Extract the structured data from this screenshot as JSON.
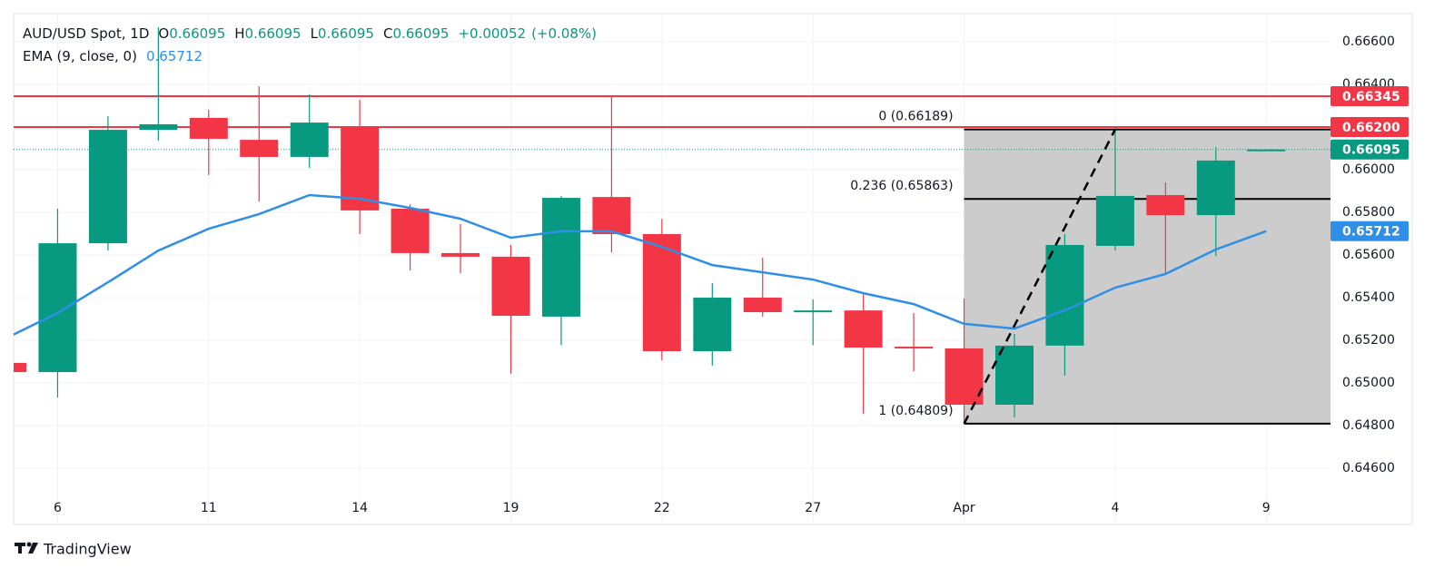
{
  "chart_data": {
    "type": "candlestick",
    "legend": {
      "symbol": "AUD/USD Spot, 1D",
      "fields": [
        {
          "label": "O",
          "value": "0.66095"
        },
        {
          "label": "H",
          "value": "0.66095"
        },
        {
          "label": "L",
          "value": "0.66095"
        },
        {
          "label": "C",
          "value": "0.66095"
        }
      ],
      "change": "+0.00052",
      "change_pct": "(+0.08%)"
    },
    "categories": [
      null,
      "6",
      null,
      null,
      "11",
      null,
      null,
      "14",
      null,
      null,
      "19",
      null,
      null,
      "22",
      null,
      null,
      "27",
      null,
      null,
      "Apr",
      null,
      null,
      "4",
      null,
      null,
      "9"
    ],
    "open": [
      0.65094,
      0.65051,
      0.65655,
      0.66187,
      0.66243,
      0.6614,
      0.6606,
      0.662,
      0.65817,
      0.65609,
      0.65592,
      0.65311,
      0.65872,
      0.65698,
      0.65149,
      0.654,
      0.65332,
      0.6534,
      0.6517,
      0.65162,
      0.64898,
      0.65175,
      0.65643,
      0.65881,
      0.65787,
      0.66095
    ],
    "high": [
      0.65094,
      0.65817,
      0.66251,
      0.66668,
      0.66281,
      0.66391,
      0.66353,
      0.66328,
      0.65838,
      0.65745,
      0.65647,
      0.65877,
      0.66345,
      0.6577,
      0.65468,
      0.65587,
      0.65392,
      0.65421,
      0.65328,
      0.65396,
      0.6523,
      0.65698,
      0.662,
      0.6594,
      0.66106,
      0.66095
    ],
    "low": [
      0.65051,
      0.64932,
      0.65621,
      0.66136,
      0.65975,
      0.65851,
      0.66009,
      0.65698,
      0.65528,
      0.65515,
      0.65043,
      0.65177,
      0.65613,
      0.65106,
      0.65081,
      0.65311,
      0.65177,
      0.64855,
      0.65055,
      0.64813,
      0.64838,
      0.65034,
      0.65621,
      0.65506,
      0.65596,
      0.66095
    ],
    "close": [
      0.65051,
      0.65655,
      0.66187,
      0.66213,
      0.66145,
      0.6606,
      0.66221,
      0.65809,
      0.65609,
      0.65592,
      0.65315,
      0.65868,
      0.65698,
      0.65149,
      0.654,
      0.65332,
      0.6534,
      0.65166,
      0.65166,
      0.64898,
      0.65175,
      0.65647,
      0.65877,
      0.65787,
      0.66043,
      0.66095
    ],
    "up_color": "#089981",
    "down_color": "#f23645",
    "ema": {
      "name": "EMA (9, close, 0)",
      "color": "#2f8fe6",
      "value_label": "0.65712",
      "values": [
        0.65213,
        0.65328,
        0.65472,
        0.65621,
        0.65723,
        0.65792,
        0.65881,
        0.65864,
        0.65821,
        0.6577,
        0.65681,
        0.65711,
        0.65711,
        0.65638,
        0.65553,
        0.65519,
        0.65485,
        0.65421,
        0.6537,
        0.65277,
        0.65255,
        0.6534,
        0.65447,
        0.65511,
        0.65626,
        0.65712
      ]
    },
    "hlines": [
      {
        "value": 0.66345,
        "color": "#f23645"
      },
      {
        "value": 0.662,
        "color": "#f23645"
      }
    ],
    "fib_levels": [
      {
        "value": 0.66189,
        "label": "0 (0.66189)"
      },
      {
        "value": 0.65863,
        "label": "0.236 (0.65863)"
      },
      {
        "value": 0.64809,
        "label": "1 (0.64809)"
      }
    ],
    "price_tags": [
      {
        "value": 0.66345,
        "label": "0.66345",
        "color": "#f23645"
      },
      {
        "value": 0.662,
        "label": "0.66200",
        "color": "#f23645"
      },
      {
        "value": 0.66095,
        "label": "0.66095",
        "color": "#089981"
      },
      {
        "value": 0.65712,
        "label": "0.65712",
        "color": "#2f8fe6"
      }
    ],
    "ylim": [
      0.64498,
      0.66732
    ],
    "yticks": [
      {
        "value": 0.646,
        "label": "0.64600"
      },
      {
        "value": 0.648,
        "label": "0.64800"
      },
      {
        "value": 0.65,
        "label": "0.65000"
      },
      {
        "value": 0.652,
        "label": "0.65200"
      },
      {
        "value": 0.654,
        "label": "0.65400"
      },
      {
        "value": 0.656,
        "label": "0.65600"
      },
      {
        "value": 0.658,
        "label": "0.65800"
      },
      {
        "value": 0.66,
        "label": "0.66000"
      },
      {
        "value": 0.662,
        "label": "0.66200"
      },
      {
        "value": 0.664,
        "label": "0.66400"
      },
      {
        "value": 0.666,
        "label": "0.66600"
      }
    ],
    "grid": true
  },
  "footer": {
    "brand": "TradingView"
  }
}
